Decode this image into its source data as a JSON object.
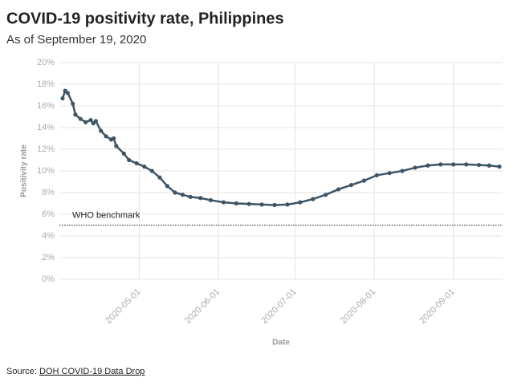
{
  "chart_data": {
    "type": "line",
    "title": "COVID-19 positivity rate, Philippines",
    "subtitle": "As of September 19, 2020",
    "y_label": "Positivity rate",
    "x_label": "Date",
    "x": [
      "2020-04-01",
      "2020-04-02",
      "2020-04-03",
      "2020-04-05",
      "2020-04-06",
      "2020-04-08",
      "2020-04-10",
      "2020-04-12",
      "2020-04-13",
      "2020-04-14",
      "2020-04-16",
      "2020-04-18",
      "2020-04-20",
      "2020-04-21",
      "2020-04-22",
      "2020-04-25",
      "2020-04-27",
      "2020-04-30",
      "2020-05-03",
      "2020-05-06",
      "2020-05-09",
      "2020-05-12",
      "2020-05-15",
      "2020-05-18",
      "2020-05-21",
      "2020-05-25",
      "2020-05-29",
      "2020-06-03",
      "2020-06-08",
      "2020-06-13",
      "2020-06-18",
      "2020-06-23",
      "2020-06-28",
      "2020-07-03",
      "2020-07-08",
      "2020-07-13",
      "2020-07-18",
      "2020-07-23",
      "2020-07-28",
      "2020-08-02",
      "2020-08-07",
      "2020-08-12",
      "2020-08-17",
      "2020-08-22",
      "2020-08-27",
      "2020-09-01",
      "2020-09-06",
      "2020-09-11",
      "2020-09-15",
      "2020-09-19"
    ],
    "series": [
      {
        "name": "Positivity rate",
        "color": "#3e5566",
        "values": [
          16.7,
          17.4,
          17.2,
          16.2,
          15.2,
          14.8,
          14.5,
          14.7,
          14.4,
          14.6,
          13.7,
          13.2,
          12.9,
          13.0,
          12.3,
          11.6,
          11.0,
          10.7,
          10.4,
          10.0,
          9.4,
          8.6,
          8.0,
          7.8,
          7.6,
          7.5,
          7.3,
          7.1,
          7.0,
          6.95,
          6.9,
          6.85,
          6.9,
          7.1,
          7.4,
          7.8,
          8.3,
          8.7,
          9.1,
          9.6,
          9.8,
          10.0,
          10.3,
          10.5,
          10.6,
          10.6,
          10.6,
          10.55,
          10.5,
          10.4
        ]
      }
    ],
    "xlim": [
      "2020-04-01",
      "2020-09-19"
    ],
    "xticks": [
      "2020-05-01",
      "2020-06-01",
      "2020-07-01",
      "2020-08-01",
      "2020-09-01"
    ],
    "ylim": [
      0,
      20
    ],
    "yticks": [
      {
        "value": 0,
        "label": "0%"
      },
      {
        "value": 2,
        "label": "2%"
      },
      {
        "value": 4,
        "label": "4%"
      },
      {
        "value": 6,
        "label": "6%"
      },
      {
        "value": 8,
        "label": "8%"
      },
      {
        "value": 10,
        "label": "10%"
      },
      {
        "value": 12,
        "label": "12%"
      },
      {
        "value": 14,
        "label": "14%"
      },
      {
        "value": 16,
        "label": "16%"
      },
      {
        "value": 18,
        "label": "18%"
      },
      {
        "value": 20,
        "label": "20%"
      }
    ],
    "grid": true,
    "reference_line": {
      "value": 5,
      "label": "WHO benchmark"
    }
  },
  "source": {
    "prefix": "Source:",
    "link": "DOH COVID-19 Data Drop"
  }
}
